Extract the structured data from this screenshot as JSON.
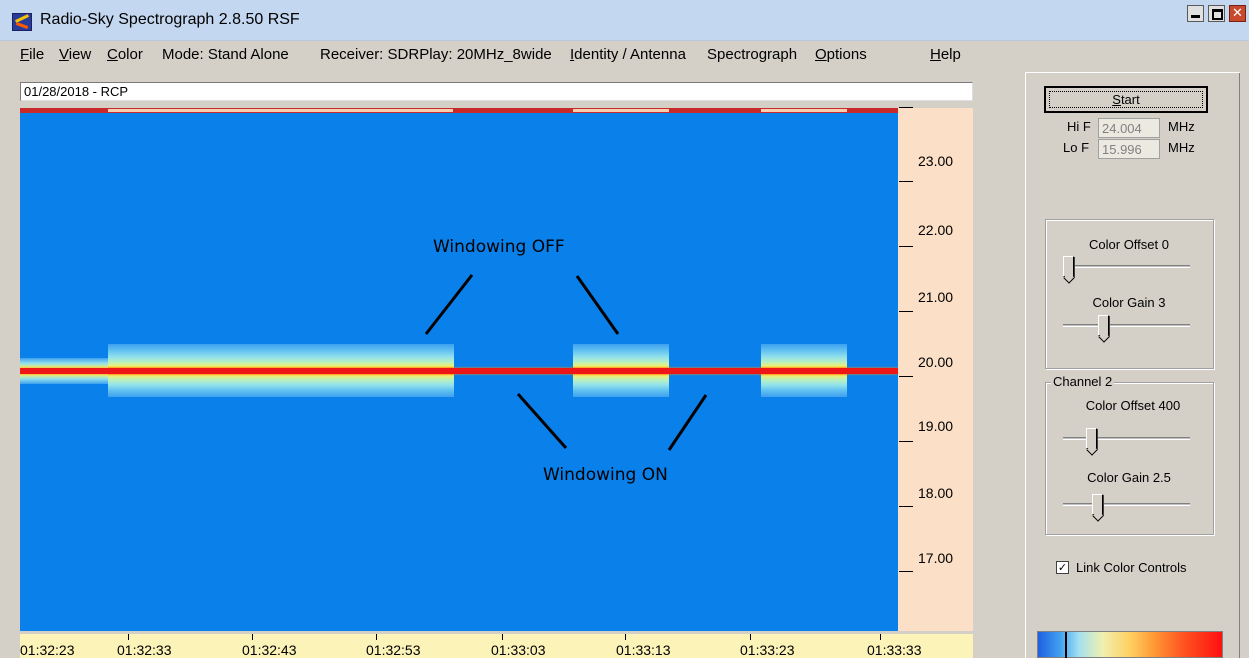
{
  "window": {
    "title": "Radio-Sky Spectrograph  2.8.50  RSF",
    "close_glyph": "✕"
  },
  "menu": {
    "file": {
      "u": "F",
      "rest": "ile"
    },
    "view": {
      "u": "V",
      "rest": "iew"
    },
    "color": {
      "u": "C",
      "rest": "olor"
    },
    "mode": "Mode: Stand Alone",
    "receiver": "Receiver:  SDRPlay: 20MHz_8wide",
    "identity": {
      "u": "I",
      "rest": "dentity / Antenna"
    },
    "spectrograph": "Spectrograph",
    "options": {
      "u": "O",
      "rest": "ptions"
    },
    "help": {
      "u": "H",
      "rest": "elp"
    }
  },
  "header": {
    "text": "01/28/2018  - RCP"
  },
  "spectrogram": {
    "annotations": {
      "off_label": "Windowing OFF",
      "on_label": "Windowing ON"
    },
    "freq_labels": [
      "23.00",
      "22.00",
      "21.00",
      "20.00",
      "19.00",
      "18.00",
      "17.00"
    ],
    "time_labels": [
      "01:32:23",
      "01:32:33",
      "01:32:43",
      "01:32:53",
      "01:33:03",
      "01:33:13",
      "01:33:23",
      "01:33:33"
    ],
    "colors": {
      "background": "#0a80ea",
      "signal_core": "#ee1616",
      "freq_axis_bg": "#fbdfc6",
      "time_axis_bg": "#fbf3b8"
    }
  },
  "controls": {
    "start_label": "Start",
    "start_underline": "S",
    "start_rest": "tart",
    "hi_f_label": "Hi F",
    "hi_f_value": "24.004",
    "lo_f_label": "Lo F",
    "lo_f_value": "15.996",
    "unit": "MHz",
    "ch1_offset_label": "Color Offset 0",
    "ch1_offset_level": 0.0,
    "ch1_gain_label": "Color Gain 3",
    "ch1_gain_level": 0.3,
    "channel2_title": "Channel 2",
    "ch2_offset_label": "Color Offset 400",
    "ch2_offset_level": 0.2,
    "ch2_gain_label": "Color Gain 2.5",
    "ch2_gain_level": 0.25,
    "link_label": "Link Color Controls",
    "link_checked": "✓"
  }
}
